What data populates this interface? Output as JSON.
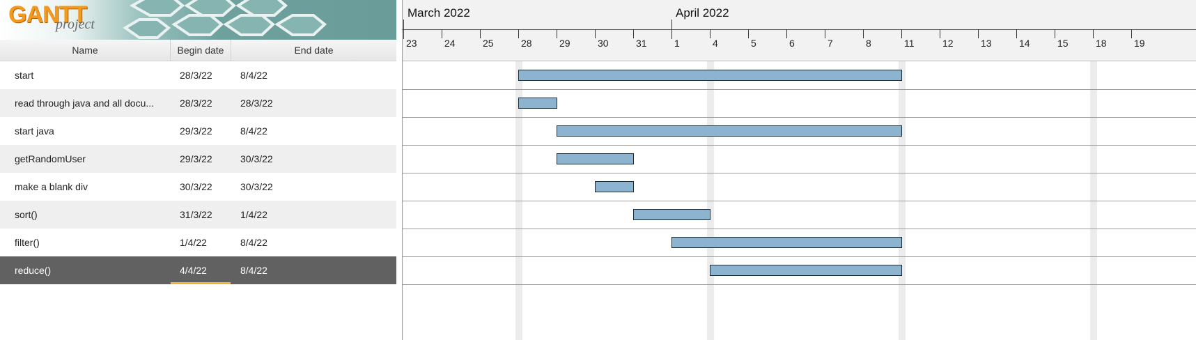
{
  "logo": {
    "brand": "GANTT",
    "sub": "project"
  },
  "table": {
    "columns": {
      "name": "Name",
      "begin": "Begin date",
      "end": "End date"
    },
    "tasks": [
      {
        "name": "start",
        "begin": "28/3/22",
        "end": "8/4/22"
      },
      {
        "name": "read through java and all docu...",
        "begin": "28/3/22",
        "end": "28/3/22"
      },
      {
        "name": "start java",
        "begin": "29/3/22",
        "end": "8/4/22"
      },
      {
        "name": "getRandomUser",
        "begin": "29/3/22",
        "end": "30/3/22"
      },
      {
        "name": "make a blank div",
        "begin": "30/3/22",
        "end": "30/3/22"
      },
      {
        "name": "sort()",
        "begin": "31/3/22",
        "end": "1/4/22"
      },
      {
        "name": "filter()",
        "begin": "1/4/22",
        "end": "8/4/22"
      },
      {
        "name": "reduce()",
        "begin": "4/4/22",
        "end": "8/4/22"
      }
    ],
    "selected_row": 7
  },
  "timeline": {
    "months": [
      "March 2022",
      "April 2022"
    ],
    "days": [
      "23",
      "24",
      "25",
      "28",
      "29",
      "30",
      "31",
      "1",
      "4",
      "5",
      "6",
      "7",
      "8",
      "11",
      "12",
      "13",
      "14",
      "15",
      "18",
      "19"
    ],
    "bars": [
      {
        "start": "28",
        "end": "11"
      },
      {
        "start": "28",
        "end": "29"
      },
      {
        "start": "29",
        "end": "11"
      },
      {
        "start": "29",
        "end": "31"
      },
      {
        "start": "30",
        "end": "31"
      },
      {
        "start": "31",
        "end": "4"
      },
      {
        "start": "1",
        "end": "11"
      },
      {
        "start": "4",
        "end": "11"
      }
    ],
    "month_start_days": [
      "23",
      "1"
    ],
    "weekend_after_days": [
      "25",
      "1",
      "8",
      "15"
    ]
  },
  "colors": {
    "bar_fill": "#8db4cf",
    "bar_stroke": "#1d2b36",
    "weekend_band": "#ececec",
    "selected_row": "#616161",
    "focus_underline": "#f2b233",
    "logo_orange": "#f39a1e"
  }
}
